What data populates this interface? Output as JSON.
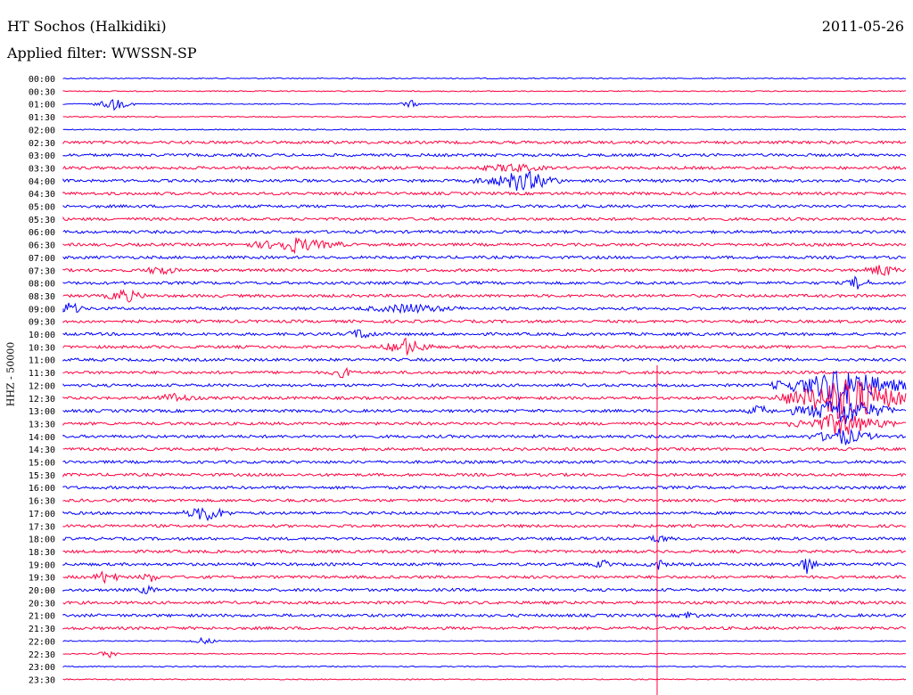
{
  "header": {
    "station": "HT Sochos (Halkidiki)",
    "date": "2011-05-26",
    "filter": "Applied filter: WWSSN-SP"
  },
  "chart_data": {
    "type": "line",
    "title": "HT Sochos (Halkidiki)",
    "ylabel": "HHZ - 50000",
    "xlabel": "",
    "row_labels": [
      "00:00",
      "00:30",
      "01:00",
      "01:30",
      "02:00",
      "02:30",
      "03:00",
      "03:30",
      "04:00",
      "04:30",
      "05:00",
      "05:30",
      "06:00",
      "06:30",
      "07:00",
      "07:30",
      "08:00",
      "08:30",
      "09:00",
      "09:30",
      "10:00",
      "10:30",
      "11:00",
      "11:30",
      "12:00",
      "12:30",
      "13:00",
      "13:30",
      "14:00",
      "14:30",
      "15:00",
      "15:30",
      "16:00",
      "16:30",
      "17:00",
      "17:30",
      "18:00",
      "18:30",
      "19:00",
      "19:30",
      "20:00",
      "20:30",
      "21:00",
      "21:30",
      "22:00",
      "22:30",
      "23:00",
      "23:30"
    ],
    "colors": {
      "even_rows": "#0000ff",
      "odd_rows": "#ff0040"
    },
    "grid": false
  }
}
